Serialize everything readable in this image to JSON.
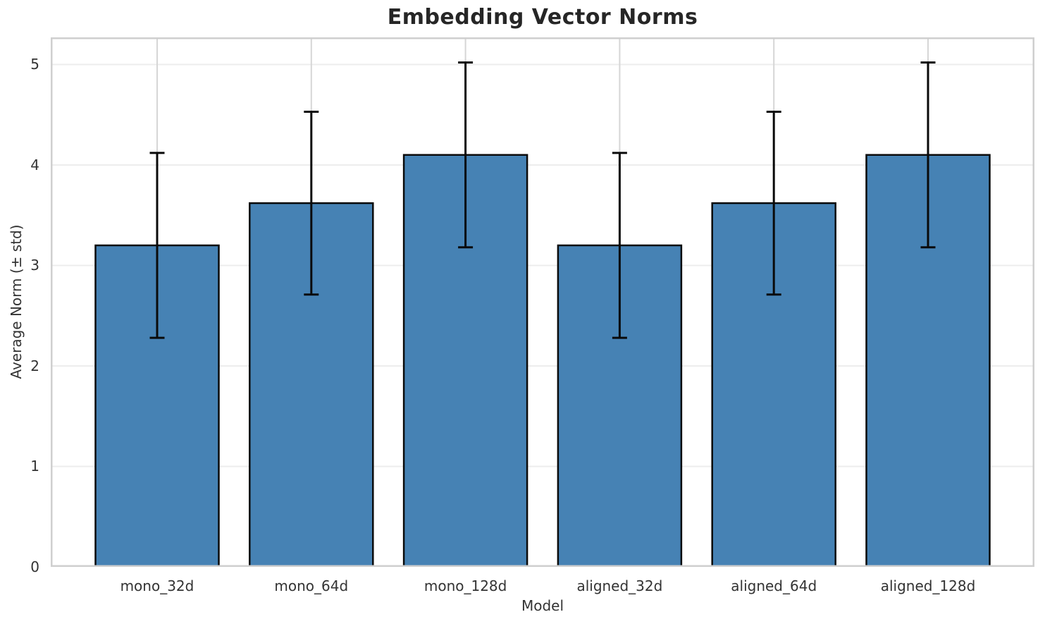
{
  "chart_data": {
    "type": "bar",
    "title": "Embedding Vector Norms",
    "xlabel": "Model",
    "ylabel": "Average Norm (± std)",
    "categories": [
      "mono_32d",
      "mono_64d",
      "mono_128d",
      "aligned_32d",
      "aligned_64d",
      "aligned_128d"
    ],
    "values": [
      3.2,
      3.62,
      4.1,
      3.2,
      3.62,
      4.1
    ],
    "errors": [
      0.92,
      0.91,
      0.92,
      0.92,
      0.91,
      0.92
    ],
    "ylim": [
      0,
      5.27
    ],
    "yticks": [
      0,
      1,
      2,
      3,
      4,
      5
    ],
    "grid": "both",
    "legend": "none",
    "colors": {
      "bar_fill": "#4682B4",
      "bar_edge": "#0a0a0a",
      "error": "#0a0a0a",
      "grid_h": "#ededed",
      "grid_v": "#d6d6d6",
      "frame": "#cfcfcf",
      "title_text": "#262626",
      "tick_text": "#333333"
    }
  }
}
